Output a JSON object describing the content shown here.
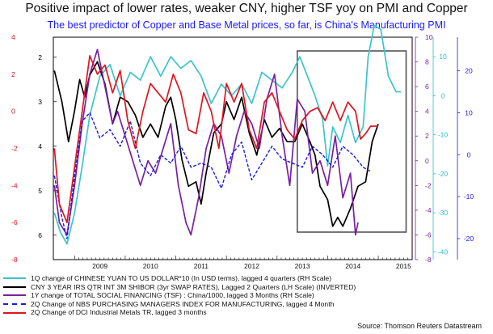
{
  "title": "Positive impact of lower rates, weaker CNY, higher TSF yoy on PMI and Copper",
  "subtitle": "The best predictor of Copper and Base Metal prices, so far, is China's Manufacturing PMI",
  "source": "Source: Thomson Reuters Datastream",
  "chart_data": {
    "type": "line",
    "x_tick_labels": [
      "2009",
      "2010",
      "2011",
      "2012",
      "2013",
      "2014",
      "2015"
    ],
    "x_range": [
      2008.58,
      2015.67
    ],
    "axes": {
      "left_red": {
        "ticks": [
          4,
          2,
          0,
          -2,
          -4,
          -6,
          -8
        ],
        "range": [
          -8,
          4
        ],
        "color": "#e0141e"
      },
      "left_black": {
        "ticks": [
          2,
          3,
          4,
          5,
          6
        ],
        "range": [
          6.55,
          1.55
        ],
        "inverted": true,
        "color": "#000000"
      },
      "right_purple": {
        "ticks": [
          10,
          8,
          6,
          4,
          2,
          0,
          -2,
          -4,
          -6,
          -8
        ],
        "range": [
          -8,
          10
        ],
        "color": "#7a1fa2"
      },
      "right_cyan": {
        "ticks": [
          10,
          0,
          -10,
          -20,
          -30,
          -40
        ],
        "range": [
          -42,
          15
        ],
        "color": "#2bbfc8"
      },
      "right_blue": {
        "ticks": [
          20,
          10,
          0,
          -10,
          -20
        ],
        "range": [
          -25,
          28
        ],
        "color": "#1a1ae0"
      }
    },
    "highlight_box": {
      "x": [
        2013.4,
        2015.55
      ]
    },
    "series": [
      {
        "name": "1Q change of CHINESE YUAN TO US DOLLAR*10 (In USD terms), lagged 4 quarters (RH Scale)",
        "axis": "right_cyan",
        "color": "#3cc4cc",
        "style": "solid",
        "x": [
          2008.6,
          2008.72,
          2008.85,
          2009.0,
          2009.15,
          2009.3,
          2009.5,
          2009.7,
          2009.9,
          2010.1,
          2010.3,
          2010.5,
          2010.7,
          2010.9,
          2011.1,
          2011.3,
          2011.5,
          2011.7,
          2011.9,
          2012.1,
          2012.3,
          2012.5,
          2012.7,
          2012.9,
          2013.1,
          2013.3,
          2013.45,
          2013.6,
          2013.75,
          2013.9,
          2014.0,
          2014.1,
          2014.25,
          2014.4,
          2014.55,
          2014.7,
          2014.8,
          2014.92,
          2015.05,
          2015.2,
          2015.35,
          2015.45
        ],
        "y": [
          -30,
          -35,
          -38,
          -30,
          -18,
          -5,
          5,
          8,
          0,
          6,
          4,
          10,
          5,
          10,
          7,
          9,
          5,
          -2,
          3,
          0,
          3,
          -2,
          6,
          4,
          2,
          6,
          10,
          5,
          0,
          -6,
          -18,
          -8,
          -12,
          -5,
          -12,
          -8,
          10,
          18,
          17,
          5,
          1,
          1
        ]
      },
      {
        "name": "CNY 3 YEAR IRS QTR INT 3M SHIBOR (3yr SWAP RATES), Lagged 2 Quarters (LH Scale) (INVERTED)",
        "axis": "left_black",
        "color": "#000000",
        "style": "solid",
        "x": [
          2008.6,
          2008.75,
          2008.88,
          2009.0,
          2009.1,
          2009.2,
          2009.3,
          2009.45,
          2009.6,
          2009.75,
          2009.9,
          2010.05,
          2010.2,
          2010.35,
          2010.5,
          2010.65,
          2010.8,
          2010.9,
          2011.0,
          2011.12,
          2011.25,
          2011.4,
          2011.5,
          2011.6,
          2011.75,
          2011.9,
          2012.0,
          2012.15,
          2012.3,
          2012.45,
          2012.6,
          2012.75,
          2012.9,
          2013.05,
          2013.2,
          2013.35,
          2013.5,
          2013.65,
          2013.75,
          2013.85,
          2014.0,
          2014.1,
          2014.2,
          2014.3,
          2014.45,
          2014.6,
          2014.75,
          2014.88,
          2015.0
        ],
        "y": [
          2.3,
          3.0,
          3.9,
          3.2,
          2.5,
          2.9,
          2.4,
          2.1,
          2.6,
          3.5,
          2.9,
          3.0,
          3.3,
          3.8,
          3.5,
          3.8,
          3.1,
          2.9,
          3.4,
          4.3,
          4.9,
          4.8,
          5.3,
          4.6,
          3.7,
          3.5,
          3.0,
          3.4,
          2.9,
          3.7,
          4.2,
          3.4,
          3.8,
          3.6,
          3.9,
          3.9,
          3.5,
          3.9,
          4.2,
          4.9,
          5.2,
          5.8,
          5.6,
          5.8,
          5.4,
          4.9,
          4.8,
          3.9,
          3.5
        ]
      },
      {
        "name": "1Y change of TOTAL SOCIAL FINANCING (TSF) : China/1000, lagged 3 Months (RH Scale)",
        "axis": "right_purple",
        "color": "#7a1fa2",
        "style": "solid",
        "x": [
          2008.6,
          2008.7,
          2008.85,
          2009.0,
          2009.15,
          2009.3,
          2009.45,
          2009.6,
          2009.75,
          2009.85,
          2010.0,
          2010.15,
          2010.3,
          2010.45,
          2010.6,
          2010.75,
          2010.9,
          2011.05,
          2011.2,
          2011.3,
          2011.45,
          2011.6,
          2011.75,
          2011.9,
          2012.05,
          2012.2,
          2012.35,
          2012.5,
          2012.65,
          2012.8,
          2012.95,
          2013.1,
          2013.25,
          2013.4,
          2013.55,
          2013.7,
          2013.85,
          2014.0,
          2014.15,
          2014.3,
          2014.45,
          2014.55,
          2014.6
        ],
        "y": [
          -2,
          -5,
          -6,
          -2,
          3,
          7,
          9,
          6,
          3,
          4,
          2,
          0,
          -2,
          0,
          -1,
          1,
          3,
          -2,
          -5,
          -6,
          -3,
          1,
          3,
          2,
          -1,
          2,
          4,
          3,
          1,
          5,
          7,
          2,
          -2,
          5,
          4,
          -1,
          0,
          -2,
          2,
          -3,
          -1,
          -6,
          -5
        ]
      },
      {
        "name": "2Q Change of NBS PURCHASING MANAGERS INDEX  FOR MANUFACTURING, lagged 4 Month",
        "axis": "right_blue",
        "color": "#1a1ae0",
        "style": "dashed",
        "x": [
          2008.6,
          2008.75,
          2008.85,
          2009.0,
          2009.15,
          2009.3,
          2009.5,
          2009.7,
          2009.9,
          2010.1,
          2010.3,
          2010.5,
          2010.7,
          2010.9,
          2011.1,
          2011.3,
          2011.5,
          2011.7,
          2011.9,
          2012.1,
          2012.3,
          2012.5,
          2012.7,
          2012.9,
          2013.1,
          2013.3,
          2013.5,
          2013.7,
          2013.9,
          2014.1,
          2014.3,
          2014.5,
          2014.7,
          2014.85
        ],
        "y": [
          -5,
          -15,
          -20,
          -5,
          8,
          10,
          4,
          6,
          2,
          8,
          -2,
          -5,
          0,
          -2,
          2,
          -3,
          -2,
          -3,
          -8,
          0,
          3,
          -6,
          -2,
          2,
          -1,
          -2,
          -3,
          2,
          0,
          -3,
          2,
          0,
          -3,
          -4
        ]
      },
      {
        "name": "2Q Change of DCI Industrial Metals TR, lagged 3 months",
        "axis": "left_red",
        "color": "#e0141e",
        "style": "solid",
        "x": [
          2008.6,
          2008.7,
          2008.85,
          2009.0,
          2009.15,
          2009.3,
          2009.45,
          2009.6,
          2009.75,
          2009.9,
          2010.05,
          2010.2,
          2010.35,
          2010.5,
          2010.65,
          2010.8,
          2010.95,
          2011.1,
          2011.25,
          2011.4,
          2011.55,
          2011.7,
          2011.85,
          2012.0,
          2012.15,
          2012.3,
          2012.45,
          2012.6,
          2012.75,
          2012.9,
          2013.05,
          2013.2,
          2013.35,
          2013.5,
          2013.65,
          2013.8,
          2013.95,
          2014.1,
          2014.25,
          2014.4,
          2014.55,
          2014.65,
          2014.75,
          2014.85,
          2015.0
        ],
        "y": [
          -2,
          -5,
          -6,
          -3,
          0,
          3,
          2,
          2.5,
          1,
          2.2,
          -0.5,
          -2,
          0,
          1.5,
          1,
          0.5,
          2,
          1,
          -1,
          -1.2,
          1,
          0,
          -2,
          1.5,
          0.5,
          1.5,
          -1,
          -2,
          0.5,
          1,
          0,
          -1,
          -1.5,
          -0.5,
          0,
          0.2,
          -0.5,
          0.5,
          -0.5,
          0.5,
          0,
          -1.5,
          -1.2,
          -0.8,
          -0.8
        ]
      }
    ]
  }
}
